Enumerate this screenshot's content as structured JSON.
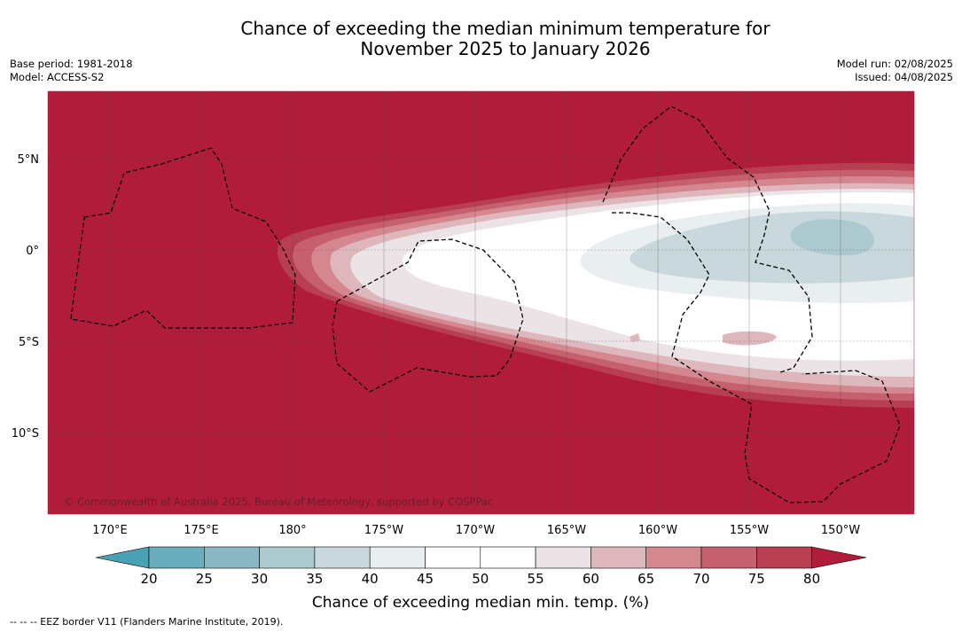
{
  "title_line1": "Chance of exceeding the median minimum temperature for",
  "title_line2": "November 2025 to January 2026",
  "base_period": "Base period: 1981-2018",
  "model": "Model: ACCESS-S2",
  "model_run": "Model run: 02/08/2025",
  "issued": "Issued: 04/08/2025",
  "copyright": "© Commonwealth of Australia 2025, Bureau of Meteorology, supported by COSPPac",
  "lat_labels": [
    "5°N",
    "0°",
    "5°S",
    "10°S"
  ],
  "lon_labels": [
    "170°E",
    "175°E",
    "180°",
    "175°W",
    "170°W",
    "165°W",
    "160°W",
    "155°W",
    "150°W"
  ],
  "colorbar": {
    "ticks": [
      "20",
      "25",
      "30",
      "35",
      "40",
      "45",
      "50",
      "55",
      "60",
      "65",
      "70",
      "75",
      "80"
    ],
    "colors": [
      "#4aa0b4",
      "#6aaebd",
      "#8ab9c5",
      "#abc9cf",
      "#c9d8dd",
      "#e9eef1",
      "#ffffff",
      "#ffffff",
      "#ebe3e5",
      "#deb7bd",
      "#d5878f",
      "#c6606e",
      "#b83e51",
      "#b11c3a"
    ],
    "label": "Chance of exceeding median min. temp. (%)"
  },
  "footer": "--  --  -- EEZ border V11 (Flanders Marine Institute, 2019)."
}
